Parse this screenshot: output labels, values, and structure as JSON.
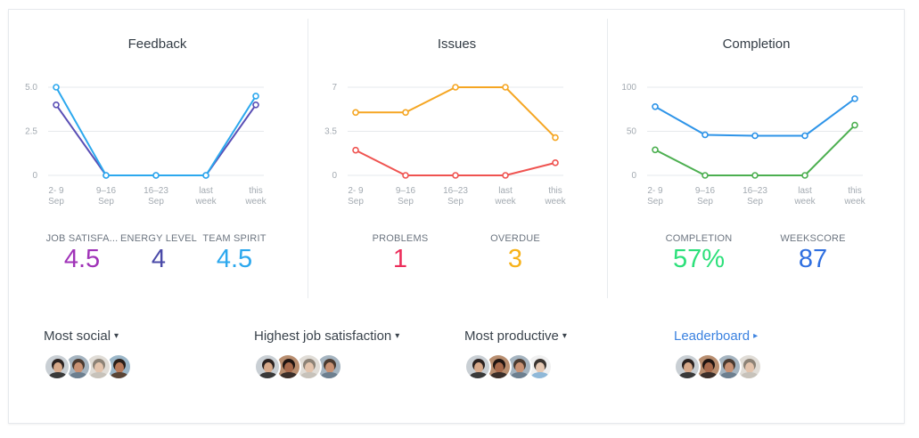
{
  "panels": [
    {
      "title": "Feedback",
      "chart_data": {
        "type": "line",
        "categories": [
          "2- 9\nSep",
          "9–16\nSep",
          "16–23\nSep",
          "last\nweek",
          "this\nweek"
        ],
        "yticks": [
          "5.0",
          "2.5",
          "0"
        ],
        "ylim": [
          0,
          5
        ],
        "series": [
          {
            "color": "#5a4fb5",
            "values": [
              4,
              0,
              0,
              0,
              4
            ]
          },
          {
            "color": "#2ca8ee",
            "values": [
              5,
              0,
              0,
              0,
              4.5
            ]
          }
        ]
      },
      "stats": [
        {
          "label": "JOB SATISFA...",
          "value": "4.5",
          "color": "#a033b8"
        },
        {
          "label": "ENERGY LEVEL",
          "value": "4",
          "color": "#4a4aa8"
        },
        {
          "label": "TEAM SPIRIT",
          "value": "4.5",
          "color": "#2ca8ee"
        }
      ]
    },
    {
      "title": "Issues",
      "chart_data": {
        "type": "line",
        "categories": [
          "2- 9\nSep",
          "9–16\nSep",
          "16–23\nSep",
          "last\nweek",
          "this\nweek"
        ],
        "yticks": [
          "7",
          "3.5",
          "0"
        ],
        "ylim": [
          0,
          7
        ],
        "series": [
          {
            "color": "#f5a623",
            "values": [
              5,
              5,
              7,
              7,
              3
            ]
          },
          {
            "color": "#ef5350",
            "values": [
              2,
              0,
              0,
              0,
              1
            ]
          }
        ]
      },
      "stats": [
        {
          "label": "PROBLEMS",
          "value": "1",
          "color": "#ec2d5a"
        },
        {
          "label": "OVERDUE",
          "value": "3",
          "color": "#f7b21b"
        }
      ]
    },
    {
      "title": "Completion",
      "chart_data": {
        "type": "line",
        "categories": [
          "2- 9\nSep",
          "9–16\nSep",
          "16–23\nSep",
          "last\nweek",
          "this\nweek"
        ],
        "yticks": [
          "100",
          "50",
          "0"
        ],
        "ylim": [
          0,
          100
        ],
        "series": [
          {
            "color": "#2e94e8",
            "values": [
              78,
              46,
              45,
              45,
              87
            ]
          },
          {
            "color": "#4caf50",
            "values": [
              29,
              0,
              0,
              0,
              57
            ]
          }
        ]
      },
      "stats": [
        {
          "label": "COMPLETION",
          "value": "57%",
          "color": "#2ce07a"
        },
        {
          "label": "WEEKSCORE",
          "value": "87",
          "color": "#2f6fe0"
        }
      ]
    }
  ],
  "groups": [
    {
      "title": "Most social",
      "arrow": "▾",
      "link": false,
      "avatars": [
        {
          "skin": "#d7a98a",
          "hair": "#2b2220",
          "shirt": "#3a3a3a",
          "bg": "#c9cfd4"
        },
        {
          "skin": "#c99274",
          "hair": "#4a3a30",
          "shirt": "#6d7f8f",
          "bg": "#a5b4c0"
        },
        {
          "skin": "#e3c4ad",
          "hair": "#8c8276",
          "shirt": "#c7c2ba",
          "bg": "#e0dcd6"
        },
        {
          "skin": "#b87a5a",
          "hair": "#2a1e18",
          "shirt": "#5a4536",
          "bg": "#9bb6c8"
        }
      ]
    },
    {
      "title": "Highest job satisfaction",
      "arrow": "▾",
      "link": false,
      "avatars": [
        {
          "skin": "#d7a98a",
          "hair": "#2b2220",
          "shirt": "#3a3a3a",
          "bg": "#c9cfd4"
        },
        {
          "skin": "#a86a4c",
          "hair": "#1f1512",
          "shirt": "#3b2f2a",
          "bg": "#b88e70"
        },
        {
          "skin": "#e3c4ad",
          "hair": "#8c8276",
          "shirt": "#c7c2ba",
          "bg": "#e0dcd6"
        },
        {
          "skin": "#c99274",
          "hair": "#4a3a30",
          "shirt": "#6d7f8f",
          "bg": "#a5b4c0"
        }
      ]
    },
    {
      "title": "Most productive",
      "arrow": "▾",
      "link": false,
      "avatars": [
        {
          "skin": "#d7a98a",
          "hair": "#2b2220",
          "shirt": "#3a3a3a",
          "bg": "#c9cfd4"
        },
        {
          "skin": "#a86a4c",
          "hair": "#1f1512",
          "shirt": "#3b2f2a",
          "bg": "#b88e70"
        },
        {
          "skin": "#c99274",
          "hair": "#4a3a30",
          "shirt": "#6d7f8f",
          "bg": "#a5b4c0"
        },
        {
          "skin": "#e6c9b4",
          "hair": "#3a3430",
          "shirt": "#8fb8d8",
          "bg": "#f0f0f0"
        }
      ]
    },
    {
      "title": "Leaderboard",
      "arrow": "▸",
      "link": true,
      "avatars": [
        {
          "skin": "#d7a98a",
          "hair": "#2b2220",
          "shirt": "#3a3a3a",
          "bg": "#c9cfd4"
        },
        {
          "skin": "#a86a4c",
          "hair": "#1f1512",
          "shirt": "#3b2f2a",
          "bg": "#b88e70"
        },
        {
          "skin": "#c99274",
          "hair": "#4a3a30",
          "shirt": "#6d7f8f",
          "bg": "#a5b4c0"
        },
        {
          "skin": "#e3c4ad",
          "hair": "#8c8276",
          "shirt": "#c7c2ba",
          "bg": "#e0dcd6"
        }
      ]
    }
  ]
}
